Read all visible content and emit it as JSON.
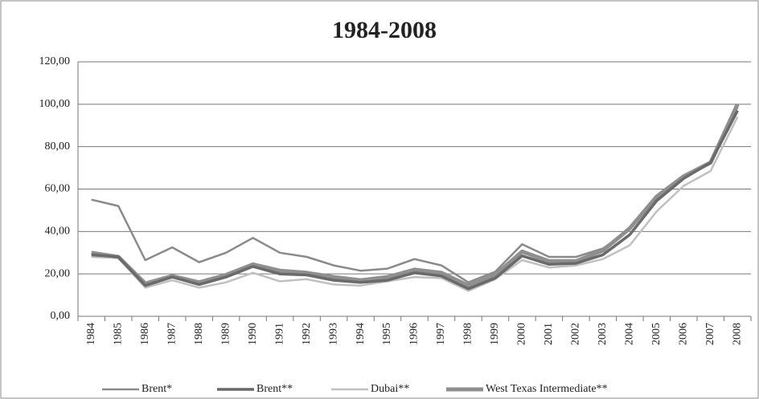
{
  "chart_data": {
    "type": "line",
    "title": "1984-2008",
    "categories": [
      "1984",
      "1985",
      "1986",
      "1987",
      "1988",
      "1989",
      "1990",
      "1991",
      "1992",
      "1993",
      "1994",
      "1995",
      "1996",
      "1997",
      "1998",
      "1999",
      "2000",
      "2001",
      "2002",
      "2003",
      "2004",
      "2005",
      "2006",
      "2007",
      "2008"
    ],
    "series": [
      {
        "name": "Brent*",
        "color": "#8a8a8a",
        "values": [
          55,
          52,
          26.5,
          32.5,
          25.5,
          30,
          37,
          30,
          28,
          24,
          21.5,
          22.5,
          27,
          24,
          16,
          21,
          34,
          28,
          28,
          32,
          41,
          56,
          65.5,
          72.5,
          98.5
        ]
      },
      {
        "name": "Brent**",
        "color": "#6a6a6a",
        "values": [
          29,
          28,
          14.5,
          18.5,
          15,
          18.5,
          23.5,
          20,
          19.5,
          17,
          16,
          17,
          20.5,
          19,
          13,
          18,
          28.5,
          24.5,
          25,
          29,
          38.5,
          54.5,
          65,
          72.5,
          97
        ]
      },
      {
        "name": "Dubai**",
        "color": "#c0c0c0",
        "values": [
          28,
          27.5,
          13.5,
          17,
          13.5,
          16,
          20.5,
          16.5,
          17.5,
          15,
          14.5,
          16.5,
          18.5,
          18,
          12,
          17.5,
          26.5,
          23,
          24,
          27,
          33.5,
          49.5,
          61.5,
          68.5,
          94
        ]
      },
      {
        "name": "West Texas Intermediate**",
        "color": "#8f8f8f",
        "values": [
          30,
          28,
          15.5,
          19,
          16,
          19.5,
          24.5,
          21.5,
          20.5,
          18.5,
          17,
          18.5,
          22,
          20.5,
          14.5,
          19.5,
          30.5,
          26,
          26,
          31,
          41.5,
          56.5,
          66,
          72.5,
          100
        ]
      }
    ],
    "ylim": [
      0,
      120
    ],
    "yticks": [
      {
        "value": 0,
        "label": "0,00"
      },
      {
        "value": 20,
        "label": "20,00"
      },
      {
        "value": 40,
        "label": "40,00"
      },
      {
        "value": 60,
        "label": "60,00"
      },
      {
        "value": 80,
        "label": "80,00"
      },
      {
        "value": 100,
        "label": "100,00"
      },
      {
        "value": 120,
        "label": "120,00"
      }
    ],
    "grid": true
  }
}
